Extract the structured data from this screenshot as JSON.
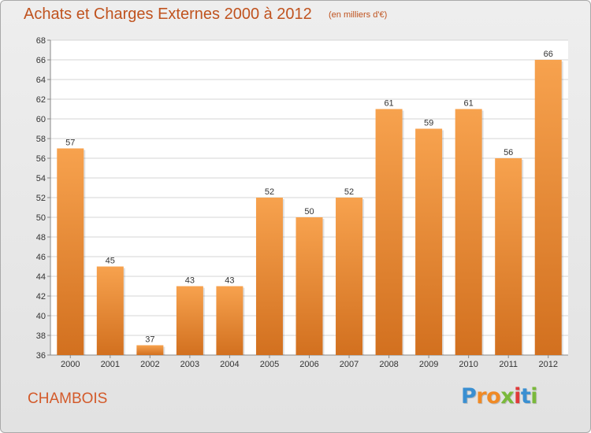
{
  "page": {
    "title": "Achats et Charges Externes 2000 à 2012",
    "subtitle": "(en milliers d'€)",
    "commune": "CHAMBOIS",
    "logo": "Proxiti"
  },
  "colors": {
    "title": "#c0531f",
    "bar_top": "#f7a24e",
    "bar_bottom": "#d2701f",
    "logo_letters": [
      "#3a8fd1",
      "#f08a25",
      "#f08a25",
      "#7ab93b",
      "#e03a3a",
      "#3a8fd1",
      "#7ab93b"
    ]
  },
  "chart_data": {
    "type": "bar",
    "title": "Achats et Charges Externes 2000 à 2012",
    "subtitle": "(en milliers d'€)",
    "categories": [
      "2000",
      "2001",
      "2002",
      "2003",
      "2004",
      "2005",
      "2006",
      "2007",
      "2008",
      "2009",
      "2010",
      "2011",
      "2012"
    ],
    "values": [
      57,
      45,
      37,
      43,
      43,
      52,
      50,
      52,
      61,
      59,
      61,
      56,
      66
    ],
    "ylim": [
      36,
      68
    ],
    "yticks": [
      36,
      38,
      40,
      42,
      44,
      46,
      48,
      50,
      52,
      54,
      56,
      58,
      60,
      62,
      64,
      66,
      68
    ],
    "grid": true,
    "data_labels": true
  }
}
